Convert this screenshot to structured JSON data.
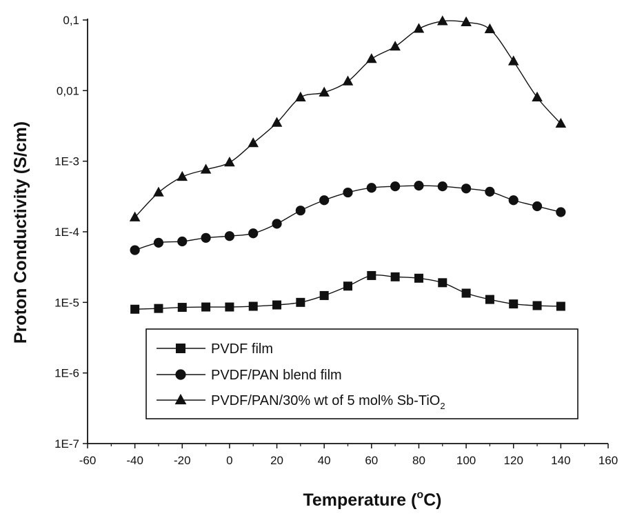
{
  "chart_data": {
    "type": "line",
    "xlabel": {
      "prefix": "Temperature (",
      "sup": "o",
      "suffix": "C)"
    },
    "ylabel": "Proton Conductivity (S/cm)",
    "xlim": [
      -60,
      160
    ],
    "ylim": [
      1e-07,
      0.1
    ],
    "y_scale": "log",
    "grid": false,
    "legend_position": "lower-center",
    "x_ticks": [
      {
        "value": -60,
        "label": "-60"
      },
      {
        "value": -40,
        "label": "-40"
      },
      {
        "value": -20,
        "label": "-20"
      },
      {
        "value": 0,
        "label": "0"
      },
      {
        "value": 20,
        "label": "20"
      },
      {
        "value": 40,
        "label": "40"
      },
      {
        "value": 60,
        "label": "60"
      },
      {
        "value": 80,
        "label": "80"
      },
      {
        "value": 100,
        "label": "100"
      },
      {
        "value": 120,
        "label": "120"
      },
      {
        "value": 140,
        "label": "140"
      },
      {
        "value": 160,
        "label": "160"
      }
    ],
    "y_ticks": [
      {
        "value": 1e-07,
        "label": "1E-7"
      },
      {
        "value": 1e-06,
        "label": "1E-6"
      },
      {
        "value": 1e-05,
        "label": "1E-5"
      },
      {
        "value": 0.0001,
        "label": "1E-4"
      },
      {
        "value": 0.001,
        "label": "1E-3"
      },
      {
        "value": 0.01,
        "label": "0,01"
      },
      {
        "value": 0.1,
        "label": "0,1"
      }
    ],
    "x": [
      -40,
      -30,
      -20,
      -10,
      0,
      10,
      20,
      30,
      40,
      50,
      60,
      70,
      80,
      90,
      100,
      110,
      120,
      130,
      140
    ],
    "series": [
      {
        "name": "PVDF film",
        "marker": "square",
        "values": [
          8e-06,
          8.2e-06,
          8.5e-06,
          8.6e-06,
          8.6e-06,
          8.8e-06,
          9.2e-06,
          1e-05,
          1.25e-05,
          1.7e-05,
          2.4e-05,
          2.3e-05,
          2.2e-05,
          1.9e-05,
          1.35e-05,
          1.1e-05,
          9.5e-06,
          9e-06,
          8.8e-06
        ]
      },
      {
        "name": "PVDF/PAN blend film",
        "marker": "circle",
        "values": [
          5.5e-05,
          7e-05,
          7.3e-05,
          8.2e-05,
          8.7e-05,
          9.5e-05,
          0.00013,
          0.0002,
          0.00028,
          0.00036,
          0.00042,
          0.00044,
          0.00045,
          0.00044,
          0.00041,
          0.00037,
          0.00028,
          0.00023,
          0.00019
        ]
      },
      {
        "name": "PVDF/PAN/30% wt of 5 mol% Sb-TiO",
        "name_subscript": "2",
        "marker": "triangle",
        "values": [
          0.00016,
          0.00036,
          0.0006,
          0.00076,
          0.00096,
          0.0018,
          0.0035,
          0.008,
          0.0094,
          0.0135,
          0.028,
          0.042,
          0.075,
          0.096,
          0.093,
          0.074,
          0.026,
          0.008,
          0.0034
        ]
      }
    ]
  }
}
